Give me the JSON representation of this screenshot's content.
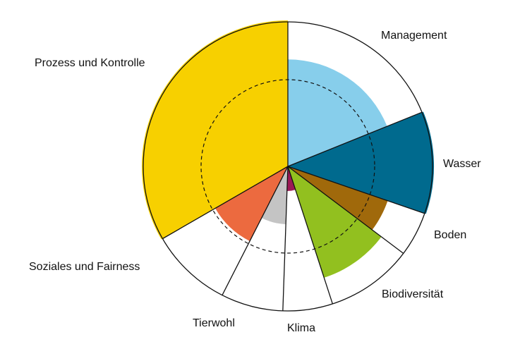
{
  "chart_data": {
    "type": "polar-area",
    "title": "",
    "max_value": 100,
    "reference_value": 60,
    "reference_line": "dashed",
    "categories": [
      {
        "name": "Management",
        "start_deg": 0,
        "end_deg": 68,
        "value": 74,
        "color": "#87ceeb"
      },
      {
        "name": "Wasser",
        "start_deg": 68,
        "end_deg": 109,
        "value": 101,
        "color": "#006a8e"
      },
      {
        "name": "Boden",
        "start_deg": 109,
        "end_deg": 127,
        "value": 73,
        "color": "#a0690b"
      },
      {
        "name": "Biodiversität",
        "start_deg": 127,
        "end_deg": 162,
        "value": 81,
        "color": "#92c01f"
      },
      {
        "name": "Klima",
        "start_deg": 162,
        "end_deg": 182,
        "value": 17,
        "color": "#9b1a55"
      },
      {
        "name": "Tierwohl",
        "start_deg": 182,
        "end_deg": 207,
        "value": 40,
        "color": "#c4c4c4"
      },
      {
        "name": "Soziales und Fairness",
        "start_deg": 207,
        "end_deg": 240,
        "value": 58,
        "color": "#ec6a3f"
      },
      {
        "name": "Prozess und Kontrolle",
        "start_deg": 240,
        "end_deg": 360,
        "value": 101,
        "color": "#f7d000"
      }
    ]
  }
}
